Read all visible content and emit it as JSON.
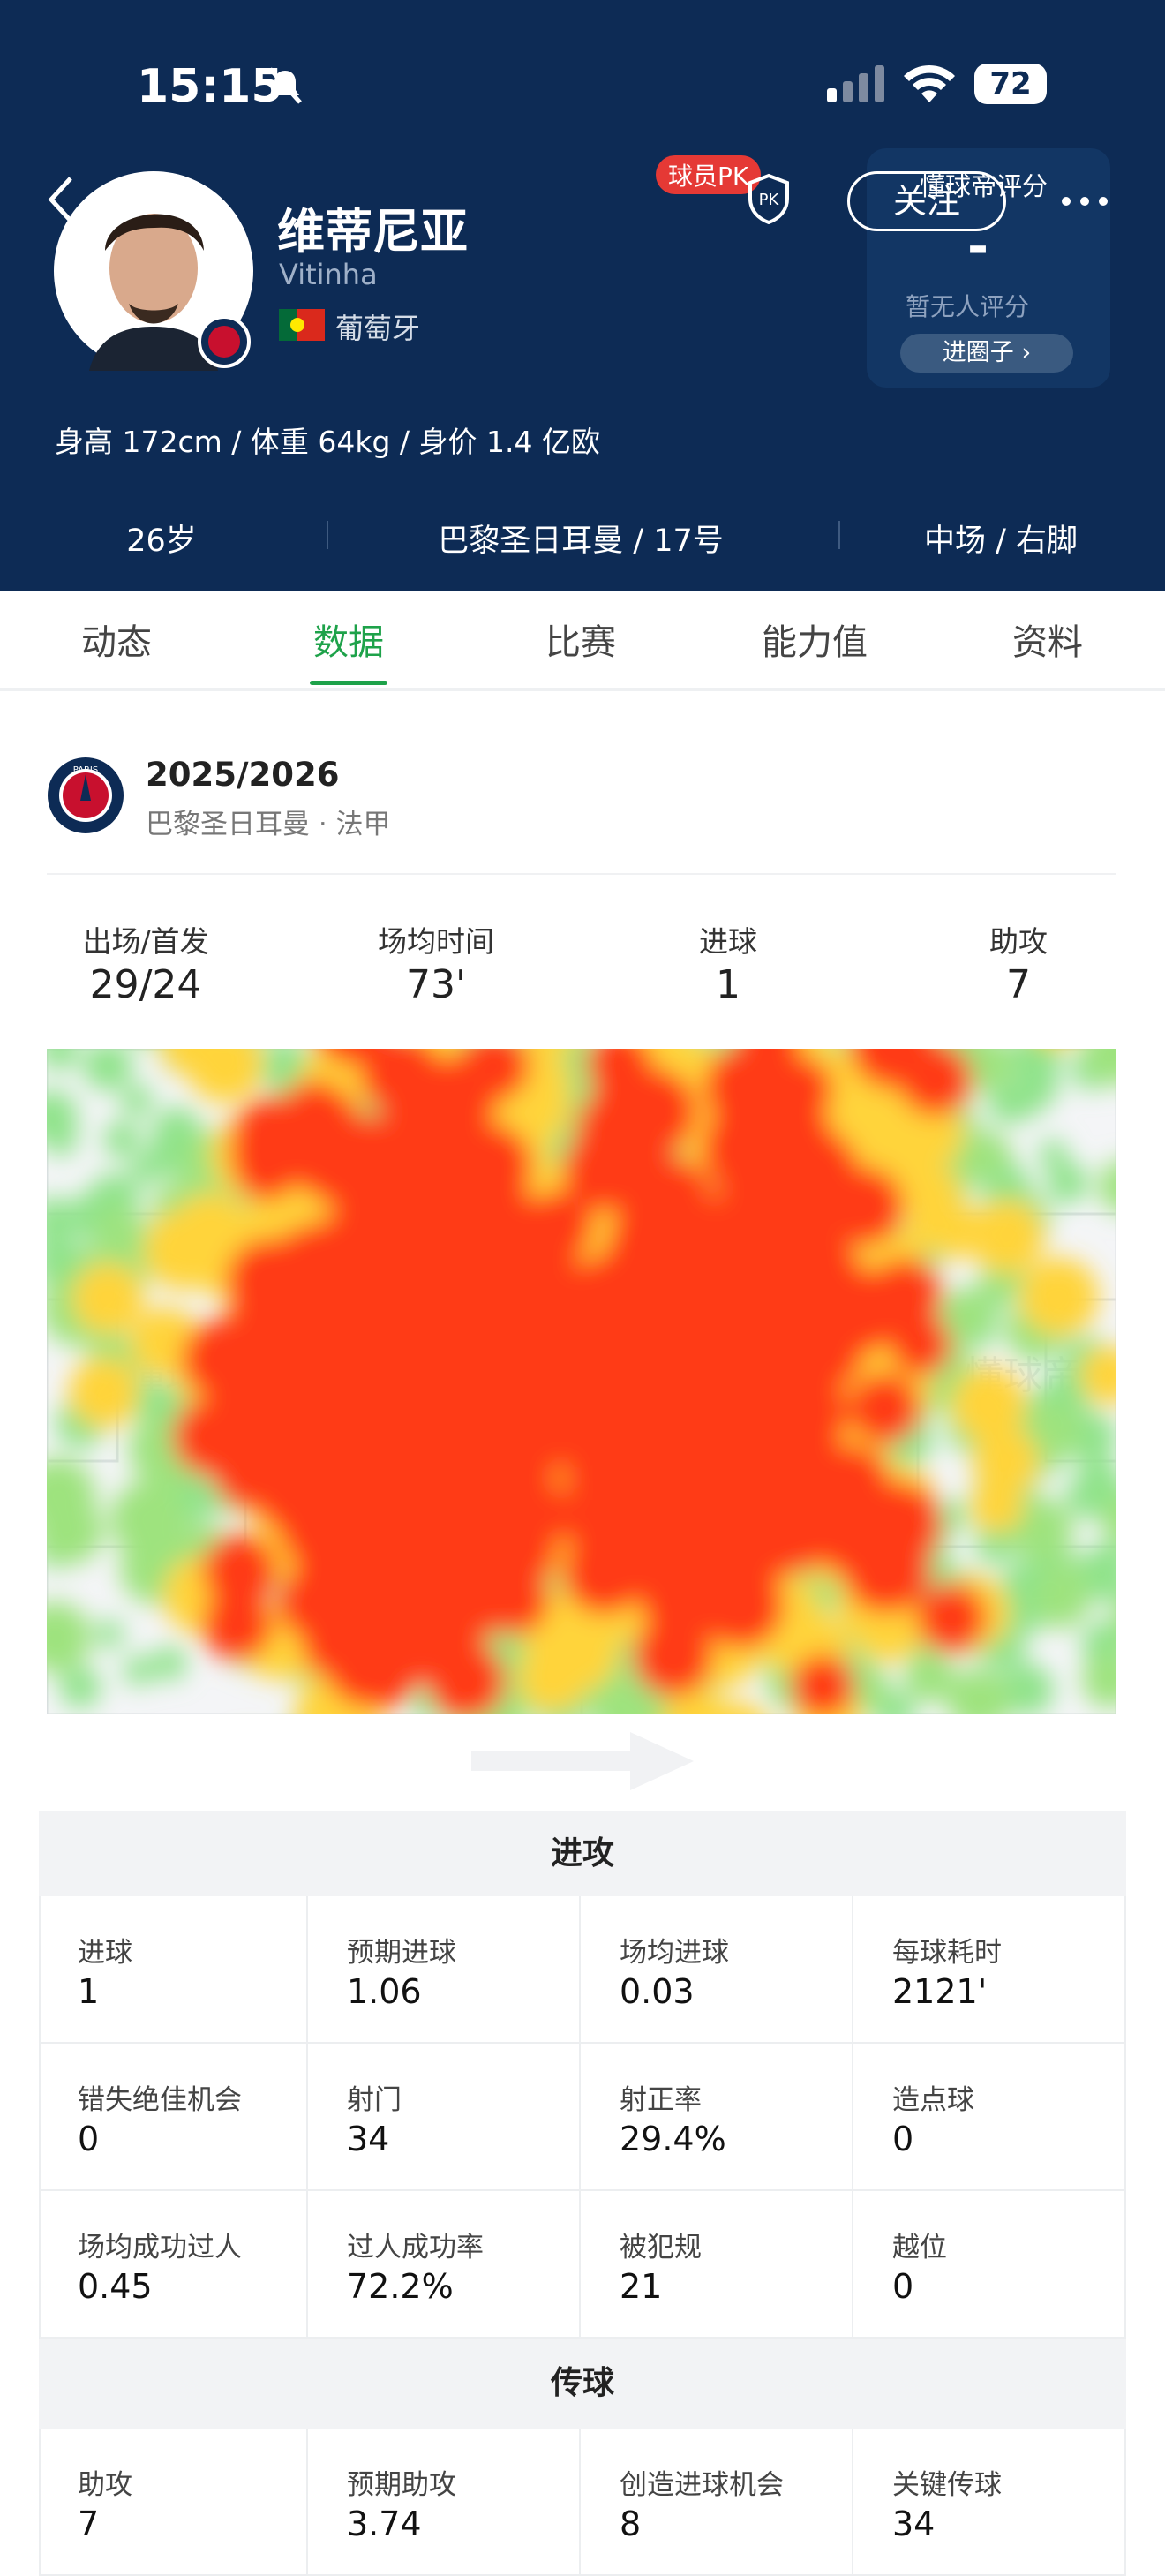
{
  "status_bar": {
    "time": "15:15",
    "battery": "72"
  },
  "player": {
    "name": "维蒂尼亚",
    "name_en": "Vitinha",
    "country": "葡萄牙",
    "pk_badge": "球员PK",
    "follow": "关注",
    "bio": "身高 172cm / 体重 64kg / 身价 1.4 亿欧",
    "info": [
      "26岁",
      "巴黎圣日耳曼 / 17号",
      "中场 / 右脚"
    ]
  },
  "rating": {
    "title": "懂球帝评分",
    "score": "-",
    "note": "暂无人评分",
    "button": "进圈子"
  },
  "tabs": {
    "items": [
      "动态",
      "数据",
      "比赛",
      "能力值",
      "资料"
    ],
    "active": 1
  },
  "season": {
    "title": "2025/2026",
    "subtitle": "巴黎圣日耳曼 · 法甲"
  },
  "summary": [
    {
      "label": "出场/首发",
      "value": "29/24"
    },
    {
      "label": "场均时间",
      "value": "73'"
    },
    {
      "label": "进球",
      "value": 1
    },
    {
      "label": "助攻",
      "value": 7
    }
  ],
  "heatmap": {
    "watermark": "懂球帝"
  },
  "sections": [
    {
      "title": "进攻",
      "cells": [
        {
          "label": "进球",
          "value": 1
        },
        {
          "label": "预期进球",
          "value": 1.06
        },
        {
          "label": "场均进球",
          "value": 0.03
        },
        {
          "label": "每球耗时",
          "value": "2121'"
        },
        {
          "label": "错失绝佳机会",
          "value": 0
        },
        {
          "label": "射门",
          "value": 34
        },
        {
          "label": "射正率",
          "value": "29.4%"
        },
        {
          "label": "造点球",
          "value": 0
        },
        {
          "label": "场均成功过人",
          "value": 0.45
        },
        {
          "label": "过人成功率",
          "value": "72.2%"
        },
        {
          "label": "被犯规",
          "value": 21
        },
        {
          "label": "越位",
          "value": 0
        }
      ]
    },
    {
      "title": "传球",
      "cells": [
        {
          "label": "助攻",
          "value": 7
        },
        {
          "label": "预期助攻",
          "value": 3.74
        },
        {
          "label": "创造进球机会",
          "value": 8
        },
        {
          "label": "关键传球",
          "value": 34
        }
      ]
    }
  ]
}
